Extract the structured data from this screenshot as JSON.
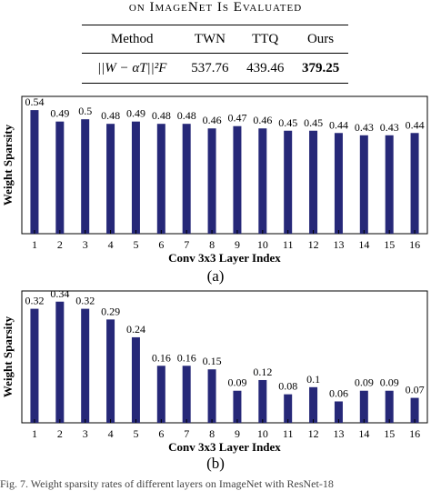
{
  "heading": "on ImageNet Is Evaluated",
  "table": {
    "columns": [
      "Method",
      "TWN",
      "TTQ",
      "Ours"
    ],
    "row_label": "||W − αT||²F",
    "values": [
      "537.76",
      "439.46",
      "379.25"
    ]
  },
  "captions": {
    "a": "(a)",
    "b": "(b)"
  },
  "footer": "Fig. 7.  Weight sparsity rates of different layers on ImageNet with ResNet-18",
  "colors": {
    "bar": "#262878"
  },
  "chart_data": [
    {
      "type": "bar",
      "title": "",
      "xlabel": "Conv 3x3 Layer Index",
      "ylabel": "Weight Sparsity",
      "categories": [
        "1",
        "2",
        "3",
        "4",
        "5",
        "6",
        "7",
        "8",
        "9",
        "10",
        "11",
        "12",
        "13",
        "14",
        "15",
        "16"
      ],
      "values": [
        0.54,
        0.49,
        0.5,
        0.48,
        0.49,
        0.48,
        0.48,
        0.46,
        0.47,
        0.46,
        0.45,
        0.45,
        0.44,
        0.43,
        0.43,
        0.44
      ],
      "value_labels": [
        "0.54",
        "0.49",
        "0.5",
        "0.48",
        "0.49",
        "0.48",
        "0.48",
        "0.46",
        "0.47",
        "0.46",
        "0.45",
        "0.45",
        "0.44",
        "0.43",
        "0.43",
        "0.44"
      ],
      "ylim": [
        0,
        0.6
      ],
      "grid": false
    },
    {
      "type": "bar",
      "title": "",
      "xlabel": "Conv 3x3 Layer Index",
      "ylabel": "Weight Sparsity",
      "categories": [
        "1",
        "2",
        "3",
        "4",
        "5",
        "6",
        "7",
        "8",
        "9",
        "10",
        "11",
        "12",
        "13",
        "14",
        "15",
        "16"
      ],
      "values": [
        0.32,
        0.34,
        0.32,
        0.29,
        0.24,
        0.16,
        0.16,
        0.15,
        0.09,
        0.12,
        0.08,
        0.1,
        0.06,
        0.09,
        0.09,
        0.07
      ],
      "value_labels": [
        "0.32",
        "0.34",
        "0.32",
        "0.29",
        "0.24",
        "0.16",
        "0.16",
        "0.15",
        "0.09",
        "0.12",
        "0.08",
        "0.1",
        "0.06",
        "0.09",
        "0.09",
        "0.07"
      ],
      "ylim": [
        0,
        0.37
      ],
      "grid": false
    }
  ]
}
